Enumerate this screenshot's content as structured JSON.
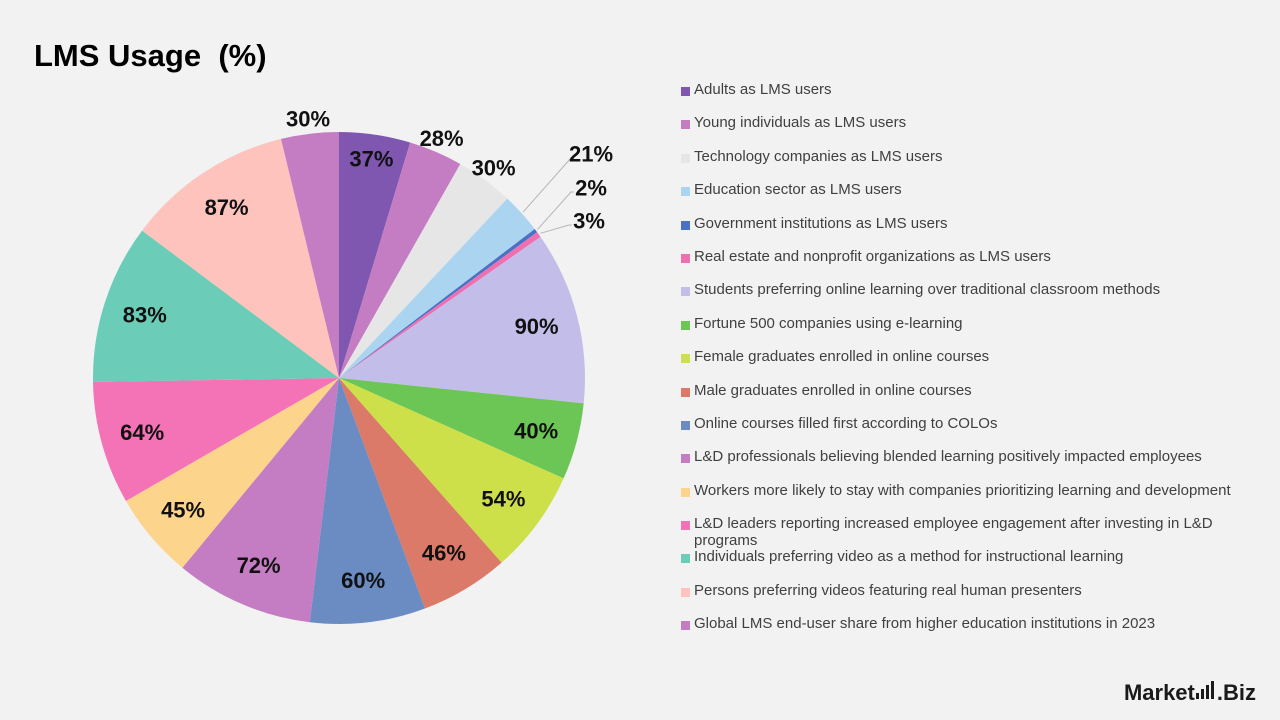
{
  "title": "LMS Usage  (%)",
  "logo": {
    "part1": "Market",
    "part2": "Biz"
  },
  "chart_data": {
    "type": "pie",
    "title": "LMS Usage  (%)",
    "legend_position": "right",
    "slices": [
      {
        "label": "Adults as LMS users",
        "value": 37,
        "display": "37%",
        "color": "#7f56b0"
      },
      {
        "label": "Young individuals as LMS users",
        "value": 28,
        "display": "28%",
        "color": "#c47cc3"
      },
      {
        "label": "Technology companies as LMS users",
        "value": 30,
        "display": "30%",
        "color": "#e6e6e6"
      },
      {
        "label": "Education sector as LMS users",
        "value": 21,
        "display": "21%",
        "color": "#aad4f0"
      },
      {
        "label": "Government institutions as LMS users",
        "value": 2,
        "display": "2%",
        "color": "#4a72c4"
      },
      {
        "label": "Real estate and nonprofit organizations as LMS users",
        "value": 3,
        "display": "3%",
        "color": "#ef6fb0"
      },
      {
        "label": "Students preferring online learning over traditional classroom methods",
        "value": 90,
        "display": "90%",
        "color": "#c3bdea"
      },
      {
        "label": "Fortune 500 companies using e-learning",
        "value": 40,
        "display": "40%",
        "color": "#6cc655"
      },
      {
        "label": "Female graduates enrolled in online courses",
        "value": 54,
        "display": "54%",
        "color": "#cde04a"
      },
      {
        "label": "Male graduates enrolled in online courses",
        "value": 46,
        "display": "46%",
        "color": "#db7a68"
      },
      {
        "label": "Online courses filled first according to COLOs",
        "value": 60,
        "display": "60%",
        "color": "#6b8cc2"
      },
      {
        "label": "L&D professionals believing blended learning positively impacted employees",
        "value": 72,
        "display": "72%",
        "color": "#c47cc3"
      },
      {
        "label": "Workers more likely to stay with companies prioritizing learning and development",
        "value": 45,
        "display": "45%",
        "color": "#fcd48c"
      },
      {
        "label": "L&D leaders reporting increased employee engagement after investing in L&D programs",
        "value": 64,
        "display": "64%",
        "color": "#f472b6"
      },
      {
        "label": "Individuals preferring video as a method for instructional learning",
        "value": 83,
        "display": "83%",
        "color": "#6bcdb7"
      },
      {
        "label": "Persons preferring videos featuring real human presenters",
        "value": 87,
        "display": "87%",
        "color": "#fdc3bc"
      },
      {
        "label": "Global LMS end-user share from higher education institutions in 2023",
        "value": 30,
        "display": "30%",
        "color": "#c47cc3"
      }
    ]
  }
}
